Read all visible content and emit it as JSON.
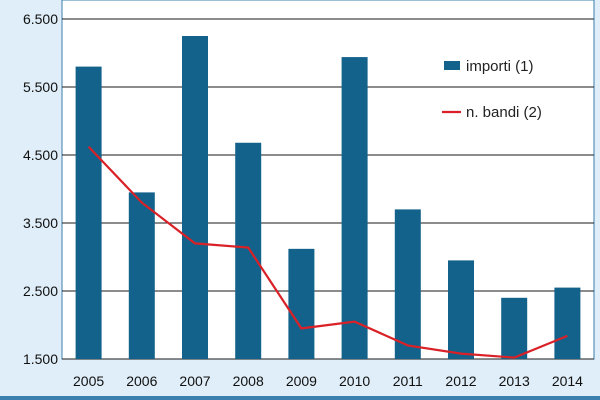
{
  "colors": {
    "bar": "#13628c",
    "line": "#d92127",
    "background": "#dfeef8",
    "plot": "#ffffff",
    "frame": "#3a7fae",
    "grid": "#1a1a1a"
  },
  "chart_data": {
    "type": "bar",
    "title": "",
    "xlabel": "",
    "ylabel": "",
    "categories": [
      "2005",
      "2006",
      "2007",
      "2008",
      "2009",
      "2010",
      "2011",
      "2012",
      "2013",
      "2014"
    ],
    "ylim": [
      1500,
      6500
    ],
    "yticks": [
      1500,
      2500,
      3500,
      4500,
      5500,
      6500
    ],
    "ytick_labels": [
      "1.500",
      "2.500",
      "3.500",
      "4.500",
      "5.500",
      "6.500"
    ],
    "series": [
      {
        "name": "importi (1)",
        "type": "bar",
        "values": [
          5800,
          3950,
          6250,
          4680,
          3120,
          5940,
          3700,
          2950,
          2400,
          2550
        ]
      },
      {
        "name": "n. bandi (2)",
        "type": "line",
        "values": [
          4620,
          3800,
          3200,
          3140,
          1950,
          2050,
          1700,
          1580,
          1520,
          1840
        ]
      }
    ],
    "legend": {
      "position": "top-right",
      "entries": [
        "importi (1)",
        "n. bandi (2)"
      ]
    },
    "grid": true
  }
}
